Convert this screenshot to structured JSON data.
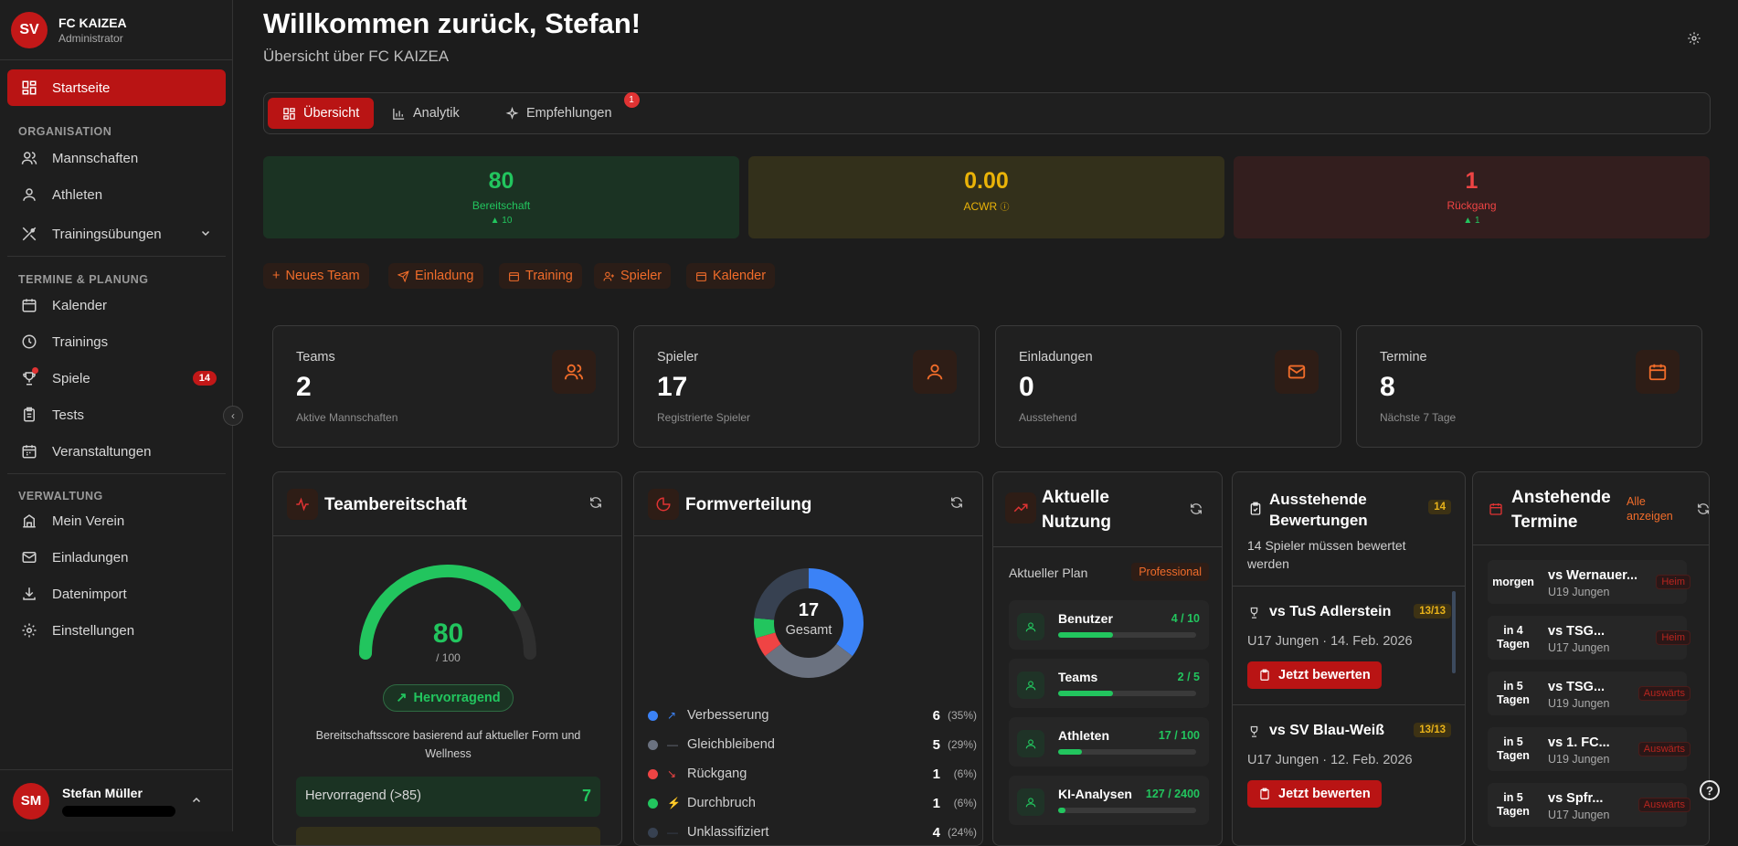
{
  "org": {
    "avatar": "SV",
    "name": "FC KAIZEA",
    "role": "Administrator"
  },
  "nav": {
    "home": "Startseite",
    "section_org": "ORGANISATION",
    "teams": "Mannschaften",
    "athletes": "Athleten",
    "drills": "Trainingsübungen",
    "section_plan": "TERMINE & PLANUNG",
    "calendar": "Kalender",
    "trainings": "Trainings",
    "games": "Spiele",
    "games_badge": "14",
    "tests": "Tests",
    "events": "Veranstaltungen",
    "section_admin": "VERWALTUNG",
    "club": "Mein Verein",
    "invites": "Einladungen",
    "import": "Datenimport",
    "settings": "Einstellungen"
  },
  "user": {
    "avatar": "SM",
    "name": "Stefan Müller"
  },
  "header": {
    "title": "Willkommen zurück, Stefan!",
    "subtitle": "Übersicht über FC KAIZEA"
  },
  "tabs": {
    "overview": "Übersicht",
    "analytics": "Analytik",
    "recommendations": "Empfehlungen",
    "rec_badge": "1"
  },
  "kpis": [
    {
      "value": "80",
      "label": "Bereitschaft",
      "delta": "▲ 10",
      "color": "#22c55e"
    },
    {
      "value": "0.00",
      "label": "ACWR",
      "delta": "",
      "color": "#eab308"
    },
    {
      "value": "1",
      "label": "Rückgang",
      "delta": "▲ 1",
      "color": "#ef4444"
    }
  ],
  "quick_actions": {
    "new_team": "Neues Team",
    "invite": "Einladung",
    "training": "Training",
    "player": "Spieler",
    "calendar": "Kalender"
  },
  "stats": [
    {
      "title": "Teams",
      "value": "2",
      "sub": "Aktive Mannschaften",
      "icon": "users-icon"
    },
    {
      "title": "Spieler",
      "value": "17",
      "sub": "Registrierte Spieler",
      "icon": "user-icon"
    },
    {
      "title": "Einladungen",
      "value": "0",
      "sub": "Ausstehend",
      "icon": "mail-icon"
    },
    {
      "title": "Termine",
      "value": "8",
      "sub": "Nächste 7 Tage",
      "icon": "calendar-icon"
    }
  ],
  "readiness": {
    "title": "Teambereitschaft",
    "score": "80",
    "max": "/ 100",
    "score_fraction": 0.8,
    "rating": "Hervorragend",
    "desc": "Bereitschaftsscore basierend auf aktueller Form und Wellness",
    "bucket_label": "Hervorragend (>85)",
    "bucket_count": "7"
  },
  "form": {
    "title": "Formverteilung",
    "total": "17",
    "total_label": "Gesamt",
    "rows": [
      {
        "label": "Verbesserung",
        "count": "6",
        "pct": "(35%)",
        "color": "#3b82f6"
      },
      {
        "label": "Gleichbleibend",
        "count": "5",
        "pct": "(29%)",
        "color": "#6b7280"
      },
      {
        "label": "Rückgang",
        "count": "1",
        "pct": "(6%)",
        "color": "#ef4444"
      },
      {
        "label": "Durchbruch",
        "count": "1",
        "pct": "(6%)",
        "color": "#22c55e"
      },
      {
        "label": "Unklassifiziert",
        "count": "4",
        "pct": "(24%)",
        "color": "#374151"
      }
    ]
  },
  "usage": {
    "title": "Aktuelle Nutzung",
    "plan_label": "Aktueller Plan",
    "plan": "Professional",
    "rows": [
      {
        "name": "Benutzer",
        "value": "4 / 10",
        "fraction": 0.4
      },
      {
        "name": "Teams",
        "value": "2 / 5",
        "fraction": 0.4
      },
      {
        "name": "Athleten",
        "value": "17 / 100",
        "fraction": 0.17
      },
      {
        "name": "KI-Analysen",
        "value": "127 / 2400",
        "fraction": 0.053
      }
    ]
  },
  "pending": {
    "title": "Ausstehende Bewertungen",
    "badge": "14",
    "sub": "14 Spieler müssen bewertet werden",
    "items": [
      {
        "opponent": "vs TuS Adlerstein",
        "count": "13/13",
        "team": "U17 Jungen",
        "date": "14. Feb. 2026",
        "button": "Jetzt bewerten"
      },
      {
        "opponent": "vs SV Blau-Weiß",
        "count": "13/13",
        "team": "U17 Jungen",
        "date": "12. Feb. 2026",
        "button": "Jetzt bewerten"
      }
    ]
  },
  "upcoming": {
    "title": "Anstehende Termine",
    "all_link": "Alle anzeigen",
    "items": [
      {
        "when": "morgen",
        "opponent": "vs Wernauer...",
        "team": "U19 Jungen",
        "type": "Heim"
      },
      {
        "when": "in 4 Tagen",
        "opponent": "vs TSG...",
        "team": "U17 Jungen",
        "type": "Heim"
      },
      {
        "when": "in 5 Tagen",
        "opponent": "vs TSG...",
        "team": "U19 Jungen",
        "type": "Auswärts"
      },
      {
        "when": "in 5 Tagen",
        "opponent": "vs 1. FC...",
        "team": "U19 Jungen",
        "type": "Auswärts"
      },
      {
        "when": "in 5 Tagen",
        "opponent": "vs Spfr...",
        "team": "U17 Jungen",
        "type": "Auswärts"
      }
    ]
  },
  "help": "?"
}
